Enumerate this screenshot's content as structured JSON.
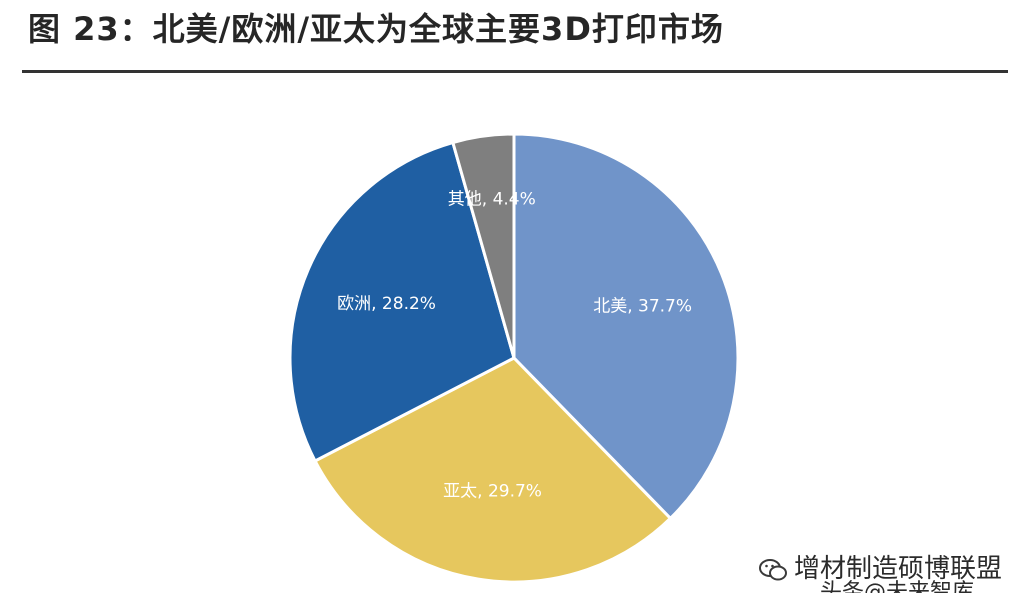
{
  "title": "图 23：北美/欧洲/亚太为全球主要3D打印市场",
  "watermark": "增材制造硕博联盟",
  "watermark_sub": "头条@未来智库",
  "chart_data": {
    "type": "pie",
    "title": "",
    "slices": [
      {
        "label": "北美, 37.7%",
        "value": 37.7,
        "color": "#7094c9"
      },
      {
        "label": "亚太, 29.7%",
        "value": 29.7,
        "color": "#e6c75e"
      },
      {
        "label": "欧洲, 28.2%",
        "value": 28.2,
        "color": "#1f5fa3"
      },
      {
        "label": "其他, 4.4%",
        "value": 4.4,
        "color": "#7f7f7f"
      }
    ],
    "start_angle_deg": 0,
    "direction": "clockwise",
    "legend": "none"
  }
}
